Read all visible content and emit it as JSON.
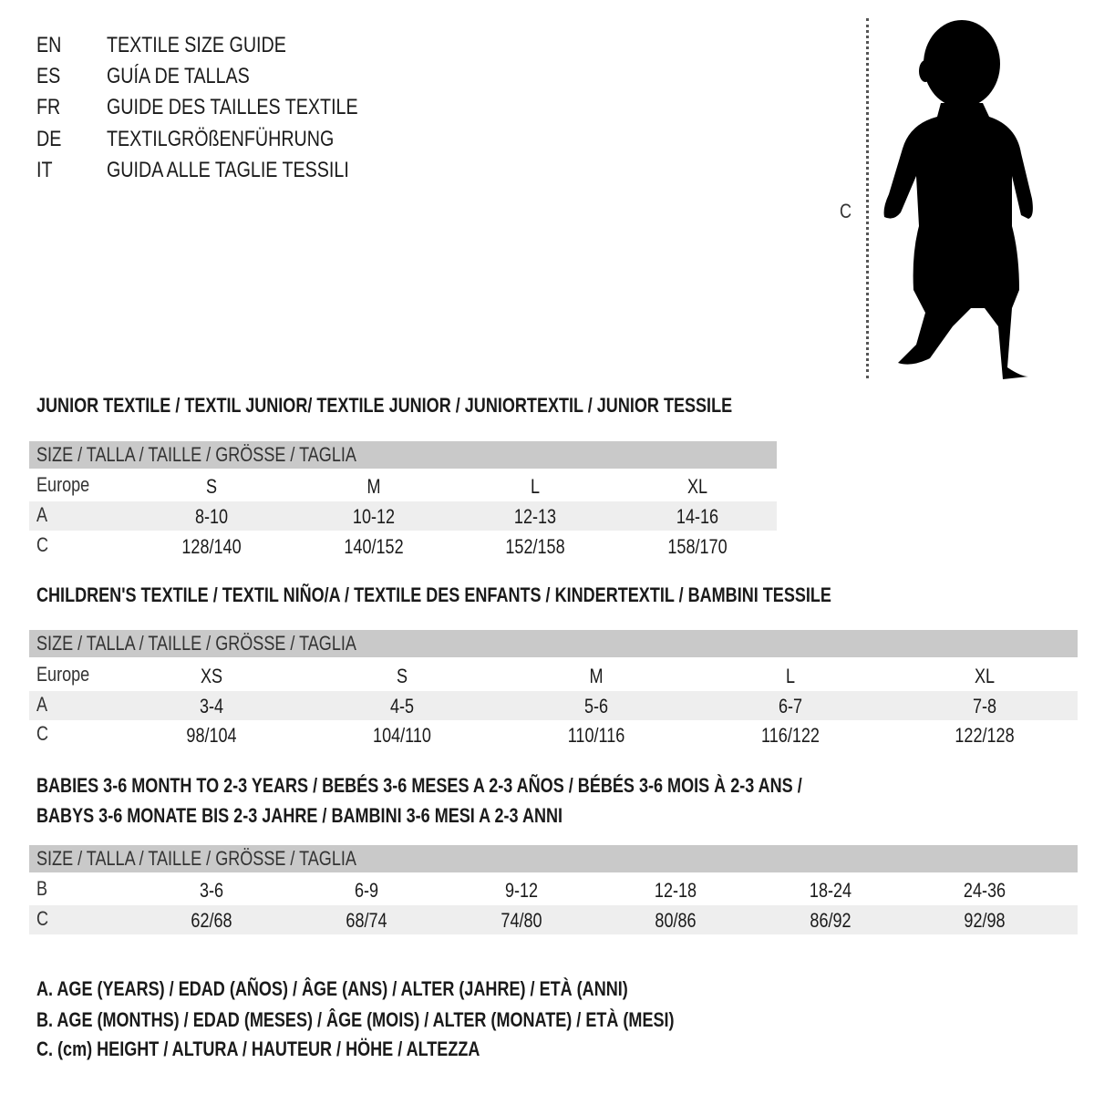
{
  "header": [
    {
      "code": "EN",
      "title": "TEXTILE SIZE GUIDE"
    },
    {
      "code": "ES",
      "title": "GUÍA DE TALLAS"
    },
    {
      "code": "FR",
      "title": "GUIDE DES TAILLES TEXTILE"
    },
    {
      "code": "DE",
      "title": "TEXTILGRÖßENFÜHRUNG"
    },
    {
      "code": "IT",
      "title": "GUIDA ALLE TAGLIE TESSILI"
    }
  ],
  "figure": {
    "measure_label": "C",
    "icon": "child-silhouette"
  },
  "tables": [
    {
      "title_lines": [
        "JUNIOR TEXTILE / TEXTIL JUNIOR/ TEXTILE JUNIOR / JUNIORTEXTIL / JUNIOR TESSILE"
      ],
      "header": "SIZE / TALLA / TAILLE / GRÖSSE / TAGLIA",
      "rows": [
        {
          "label": "Europe",
          "values": [
            "S",
            "M",
            "L",
            "XL"
          ]
        },
        {
          "label": "A",
          "values": [
            "8-10",
            "10-12",
            "12-13",
            "14-16"
          ]
        },
        {
          "label": "C",
          "values": [
            "128/140",
            "140/152",
            "152/158",
            "158/170"
          ]
        }
      ]
    },
    {
      "title_lines": [
        "CHILDREN'S TEXTILE / TEXTIL NIÑO/A / TEXTILE DES ENFANTS / KINDERTEXTIL / BAMBINI TESSILE"
      ],
      "header": "SIZE / TALLA / TAILLE / GRÖSSE / TAGLIA",
      "rows": [
        {
          "label": "Europe",
          "values": [
            "XS",
            "S",
            "M",
            "L",
            "XL"
          ]
        },
        {
          "label": "A",
          "values": [
            "3-4",
            "4-5",
            "5-6",
            "6-7",
            "7-8"
          ]
        },
        {
          "label": "C",
          "values": [
            "98/104",
            "104/110",
            "110/116",
            "116/122",
            "122/128"
          ]
        }
      ]
    },
    {
      "title_lines": [
        "BABIES 3-6 MONTH TO 2-3 YEARS / BEBÉS 3-6 MESES A 2-3 AÑOS / BÉBÉS 3-6 MOIS À 2-3 ANS /",
        "BABYS 3-6 MONATE BIS 2-3 JAHRE / BAMBINI 3-6 MESI A 2-3 ANNI"
      ],
      "header": "SIZE / TALLA / TAILLE / GRÖSSE / TAGLIA",
      "rows": [
        {
          "label": "B",
          "values": [
            "3-6",
            "6-9",
            "9-12",
            "12-18",
            "18-24",
            "24-36"
          ]
        },
        {
          "label": "C",
          "values": [
            "62/68",
            "68/74",
            "74/80",
            "80/86",
            "86/92",
            "92/98"
          ]
        }
      ]
    }
  ],
  "legend": [
    "A. AGE (YEARS) / EDAD (AÑOS) / ÂGE (ANS) / ALTER (JAHRE) / ETÀ (ANNI)",
    "B. AGE (MONTHS) / EDAD (MESES) / ÂGE (MOIS) / ALTER (MONATE) / ETÀ (MESI)",
    "C. (cm) HEIGHT / ALTURA / HAUTEUR / HÖHE / ALTEZZA"
  ]
}
